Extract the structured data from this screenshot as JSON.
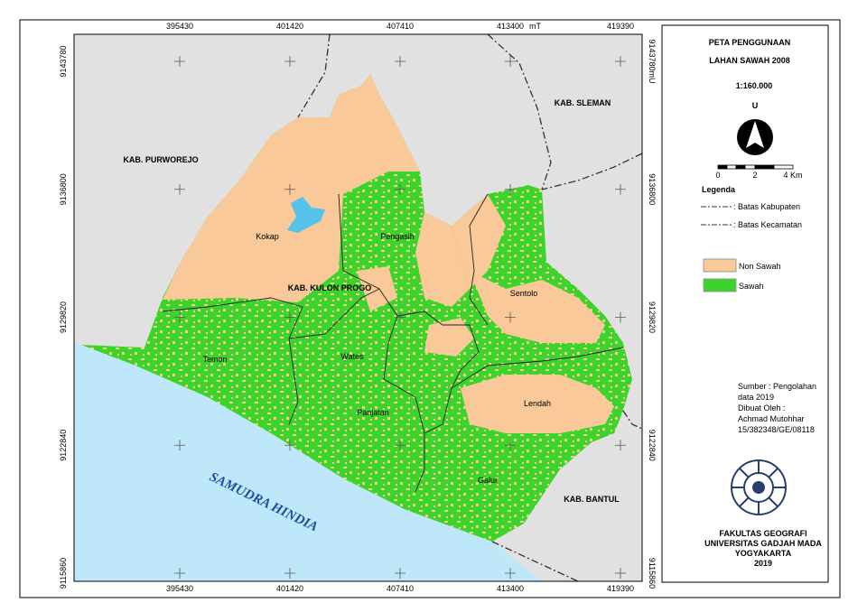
{
  "map": {
    "x_ticks": [
      395430,
      401420,
      407410,
      413400,
      419390
    ],
    "x_unit": "mT",
    "y_ticks": [
      9143780,
      9136800,
      9129820,
      9122840,
      9115860
    ],
    "y_unit": "mU",
    "regions": [
      "KAB. PURWOREJO",
      "KAB. SLEMAN",
      "KAB. KULON PROGO",
      "KAB. BANTUL"
    ],
    "sea": "SAMUDRA HINDIA",
    "districts": [
      "Kokap",
      "Pengasih",
      "Sentolo",
      "Temon",
      "Wates",
      "Panjatan",
      "Lendah",
      "Galur"
    ]
  },
  "panel": {
    "title": [
      "PETA PENGGUNAAN",
      "LAHAN SAWAH 2008"
    ],
    "scale": "1:160.000",
    "north": "U",
    "scale_bar": {
      "ticks": [
        0,
        2,
        4
      ],
      "unit": "Km"
    },
    "legend_title": "Legenda",
    "legend": [
      ": Batas Kabupaten",
      ": Batas Kecamatan",
      "Non Sawah",
      "Sawah"
    ],
    "source": [
      "Sumber : Pengolahan",
      "data 2019",
      "Dibuat Oleh :",
      "Achmad Mutohhar",
      "15/382348/GE/08118"
    ],
    "institution": [
      "FAKULTAS GEOGRAFI",
      "UNIVERSITAS GADJAH MADA",
      "YOGYAKARTA",
      "2019"
    ]
  }
}
